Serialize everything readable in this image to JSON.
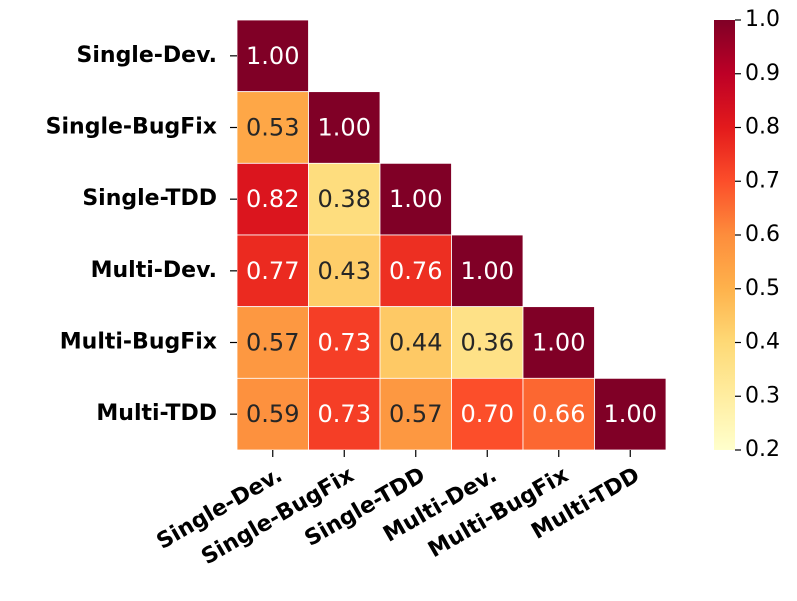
{
  "chart_data": {
    "type": "heatmap",
    "categories": [
      "Single-Dev.",
      "Single-BugFix",
      "Single-TDD",
      "Multi-Dev.",
      "Multi-BugFix",
      "Multi-TDD"
    ],
    "values": [
      [
        1,
        null,
        null,
        null,
        null,
        null
      ],
      [
        0.53,
        1,
        null,
        null,
        null,
        null
      ],
      [
        0.82,
        0.38,
        1,
        null,
        null,
        null
      ],
      [
        0.77,
        0.43,
        0.76,
        1,
        null,
        null
      ],
      [
        0.57,
        0.73,
        0.44,
        0.36,
        1,
        null
      ],
      [
        0.59,
        0.73,
        0.57,
        0.7,
        0.66,
        1
      ]
    ],
    "value_labels": [
      [
        "1.00",
        null,
        null,
        null,
        null,
        null
      ],
      [
        "0.53",
        "1.00",
        null,
        null,
        null,
        null
      ],
      [
        "0.82",
        "0.38",
        "1.00",
        null,
        null,
        null
      ],
      [
        "0.77",
        "0.43",
        "0.76",
        "1.00",
        null,
        null
      ],
      [
        "0.57",
        "0.73",
        "0.44",
        "0.36",
        "1.00",
        null
      ],
      [
        "0.59",
        "0.73",
        "0.57",
        "0.70",
        "0.66",
        "1.00"
      ]
    ],
    "colormap": [
      "#ffffcc",
      "#ffeda0",
      "#fed976",
      "#feb24c",
      "#fd8d3c",
      "#fc4e2a",
      "#e31a1c",
      "#bd0026",
      "#800026"
    ],
    "clim": [
      0.2,
      1
    ],
    "cticks": [
      0.2,
      0.3,
      0.4,
      0.5,
      0.6,
      0.7,
      0.8,
      0.9,
      {
        "value": 1,
        "label": "1.0"
      }
    ]
  }
}
